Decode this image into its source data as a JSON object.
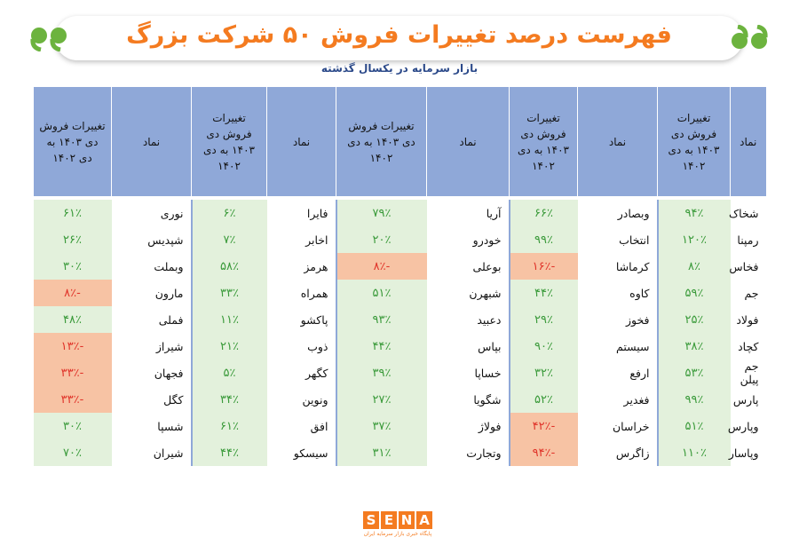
{
  "header": {
    "title": "فهرست درصد تغییرات فروش ۵۰ شرکت بزرگ",
    "subtitle": "بازار سرمایه در یکسال گذشته"
  },
  "table": {
    "header": [
      "نماد",
      "تغییرات فروش دی ۱۴۰۳ به دی ۱۴۰۲",
      "نماد",
      "تغییرات فروش دی ۱۴۰۳ به دی ۱۴۰۲",
      "نماد",
      "تغییرات فروش دی ۱۴۰۳ به دی ۱۴۰۲",
      "نماد",
      "تغییرات فروش دی ۱۴۰۳ به دی ۱۴۰۲",
      "نماد",
      "تغییرات فروش دی ۱۴۰۳ به دی ۱۴۰۲"
    ],
    "rows": [
      [
        "شخاک",
        "۹۴٪",
        "وبصادر",
        "۶۶٪",
        "آریا",
        "۷۹٪",
        "فایرا",
        "۶٪",
        "نوری",
        "۶۱٪"
      ],
      [
        "رمپنا",
        "۱۲۰٪",
        "انتخاب",
        "۹۹٪",
        "خودرو",
        "۲۰٪",
        "اخابر",
        "۷٪",
        "شپدیس",
        "۲۶٪"
      ],
      [
        "فخاس",
        "۸٪",
        "کرماشا",
        "-۱۶٪",
        "بوعلی",
        "-۸٪",
        "هرمز",
        "۵۸٪",
        "وبملت",
        "۳۰٪"
      ],
      [
        "جم",
        "۵۹٪",
        "کاوه",
        "۴۴٪",
        "شبهرن",
        "۵۱٪",
        "همراه",
        "۳۳٪",
        "مارون",
        "-۸٪"
      ],
      [
        "فولاد",
        "۲۵٪",
        "فخوز",
        "۲۹٪",
        "دعبید",
        "۹۳٪",
        "پاکشو",
        "۱۱٪",
        "فملی",
        "۴۸٪"
      ],
      [
        "کچاد",
        "۳۸٪",
        "سیستم",
        "۹۰٪",
        "بپاس",
        "۴۴٪",
        "ذوب",
        "۲۱٪",
        "شیراز",
        "-۱۳٪"
      ],
      [
        "جم پیلن",
        "۵۳٪",
        "ارفع",
        "۳۲٪",
        "خساپا",
        "۳۹٪",
        "کگهر",
        "۵٪",
        "فجهان",
        "-۳۳٪"
      ],
      [
        "پارس",
        "۹۹٪",
        "فغدیر",
        "۵۲٪",
        "شگویا",
        "۲۷٪",
        "ونوین",
        "۳۴٪",
        "کگل",
        "-۳۳٪"
      ],
      [
        "وپارس",
        "۵۱٪",
        "خراسان",
        "-۴۲٪",
        "فولاژ",
        "۳۷٪",
        "افق",
        "۶۱٪",
        "شسپا",
        "۳۰٪"
      ],
      [
        "وپاسار",
        "۱۱۰٪",
        "زاگرس",
        "-۹۴٪",
        "وتجارت",
        "۳۱٪",
        "سیسکو",
        "۴۴٪",
        "شیران",
        "۷۰٪"
      ]
    ]
  },
  "logo": {
    "name": "SENA",
    "tagline": "پایگاه خبری بازار سرمایه ایران"
  }
}
